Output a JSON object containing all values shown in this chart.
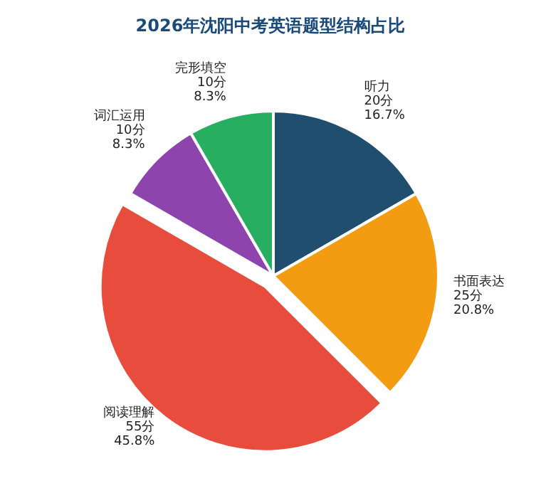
{
  "chart_data": {
    "type": "pie",
    "title": "2026年沈阳中考英语题型结构占比",
    "categories": [
      "听力",
      "书面表达",
      "阅读理解",
      "词汇运用",
      "完形填空"
    ],
    "values": [
      20,
      25,
      55,
      10,
      10
    ],
    "value_labels": [
      "20分 16.7%",
      "25分 20.8%",
      "55分 45.8%",
      "10分 8.3%",
      "10分 8.3%"
    ],
    "colors": [
      "#1f4e6e",
      "#f39c12",
      "#e74c3c",
      "#8e44ad",
      "#27ae60"
    ]
  }
}
